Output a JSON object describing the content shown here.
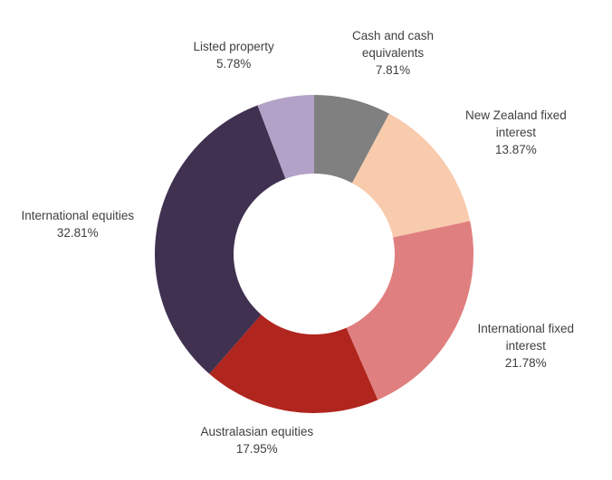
{
  "chart_data": {
    "type": "pie",
    "subtype": "donut",
    "title": "",
    "legend": "none (data labels on chart)",
    "start_angle_deg": 0,
    "direction": "clockwise",
    "center": [
      347,
      281
    ],
    "outer_radius": 176,
    "inner_radius": 89,
    "slices": [
      {
        "name": "Cash and cash equivalents",
        "value": 7.81,
        "label_lines": [
          "Cash and cash",
          "equivalents",
          "7.81%"
        ],
        "color": "#808080",
        "label_pos": [
          434,
          30
        ]
      },
      {
        "name": "New Zealand fixed interest",
        "value": 13.87,
        "label_lines": [
          "New Zealand fixed",
          "interest",
          "13.87%"
        ],
        "color": "#F8CBAD",
        "label_pos": [
          570,
          118
        ]
      },
      {
        "name": "International fixed interest",
        "value": 21.78,
        "label_lines": [
          "International fixed",
          "interest",
          "21.78%"
        ],
        "color": "#E07F7F",
        "label_pos": [
          581,
          354
        ]
      },
      {
        "name": "Australasian equities",
        "value": 17.95,
        "label_lines": [
          "Australasian equities",
          "17.95%"
        ],
        "color": "#B0251D",
        "label_pos": [
          284,
          468
        ]
      },
      {
        "name": "International equities",
        "value": 32.81,
        "label_lines": [
          "International equities",
          "32.81%"
        ],
        "color": "#403151",
        "label_pos": [
          86,
          229
        ]
      },
      {
        "name": "Listed property",
        "value": 5.78,
        "label_lines": [
          "Listed property",
          "5.78%"
        ],
        "color": "#B3A2C7",
        "label_pos": [
          258,
          42
        ]
      }
    ],
    "categories": [
      "Cash and cash equivalents",
      "New Zealand fixed interest",
      "International fixed interest",
      "Australasian equities",
      "International equities",
      "Listed property"
    ],
    "values": [
      7.81,
      13.87,
      21.78,
      17.95,
      32.81,
      5.78
    ],
    "unit": "%"
  }
}
